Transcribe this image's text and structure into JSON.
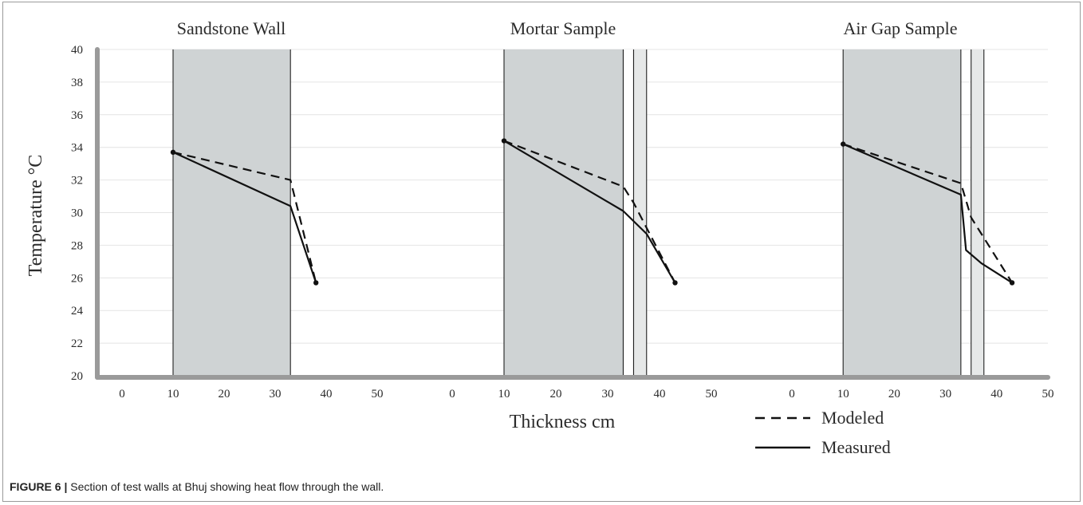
{
  "figure": {
    "caption_label": "FIGURE 6 |",
    "caption_text": " Section of test walls at Bhuj showing heat flow through the wall."
  },
  "colors": {
    "layer_fill": "#cfd3d4",
    "gap_fill": "#e6e8e8",
    "axis": "#9a9a9a",
    "line": "#111111",
    "grid": "#e4e4e4"
  },
  "chart_data": {
    "type": "line",
    "ylabel": "Temperature °C",
    "xlabel": "Thickness cm",
    "ylim": [
      20,
      40
    ],
    "yticks": [
      20,
      22,
      24,
      26,
      28,
      30,
      32,
      34,
      36,
      38,
      40
    ],
    "grid": true,
    "legend": {
      "position": "bottom-right",
      "entries": [
        {
          "name": "Modeled",
          "style": "dashed"
        },
        {
          "name": "Measured",
          "style": "solid"
        }
      ]
    },
    "panels": [
      {
        "title": "Sandstone Wall",
        "xticks": [
          0,
          10,
          20,
          30,
          40,
          50
        ],
        "layers": [
          {
            "from": 10,
            "to": 33,
            "kind": "wall"
          }
        ],
        "series": [
          {
            "name": "Modeled",
            "style": "dashed",
            "x": [
              10,
              33,
              38
            ],
            "y": [
              33.7,
              32.0,
              25.7
            ]
          },
          {
            "name": "Measured",
            "style": "solid",
            "x": [
              10,
              33,
              38
            ],
            "y": [
              33.7,
              30.4,
              25.7
            ]
          }
        ]
      },
      {
        "title": "Mortar Sample",
        "xticks": [
          0,
          10,
          20,
          30,
          40,
          50
        ],
        "layers": [
          {
            "from": 10,
            "to": 33,
            "kind": "wall"
          },
          {
            "from": 33,
            "to": 35,
            "kind": "mortar"
          },
          {
            "from": 35,
            "to": 37.5,
            "kind": "gap"
          }
        ],
        "series": [
          {
            "name": "Modeled",
            "style": "dashed",
            "x": [
              10,
              33,
              35,
              43
            ],
            "y": [
              34.4,
              31.6,
              30.6,
              25.7
            ]
          },
          {
            "name": "Measured",
            "style": "solid",
            "x": [
              10,
              33,
              37.5,
              43
            ],
            "y": [
              34.4,
              30.1,
              28.7,
              25.7
            ]
          }
        ]
      },
      {
        "title": "Air Gap Sample",
        "xticks": [
          0,
          10,
          20,
          30,
          40,
          50
        ],
        "layers": [
          {
            "from": 10,
            "to": 33,
            "kind": "wall"
          },
          {
            "from": 35,
            "to": 37.5,
            "kind": "gap"
          }
        ],
        "series": [
          {
            "name": "Modeled",
            "style": "dashed",
            "x": [
              10,
              33,
              35,
              43
            ],
            "y": [
              34.2,
              31.8,
              29.7,
              25.7
            ]
          },
          {
            "name": "Measured",
            "style": "solid",
            "x": [
              10,
              33,
              34,
              37,
              43
            ],
            "y": [
              34.2,
              31.1,
              27.7,
              26.9,
              25.7
            ]
          }
        ]
      }
    ]
  }
}
